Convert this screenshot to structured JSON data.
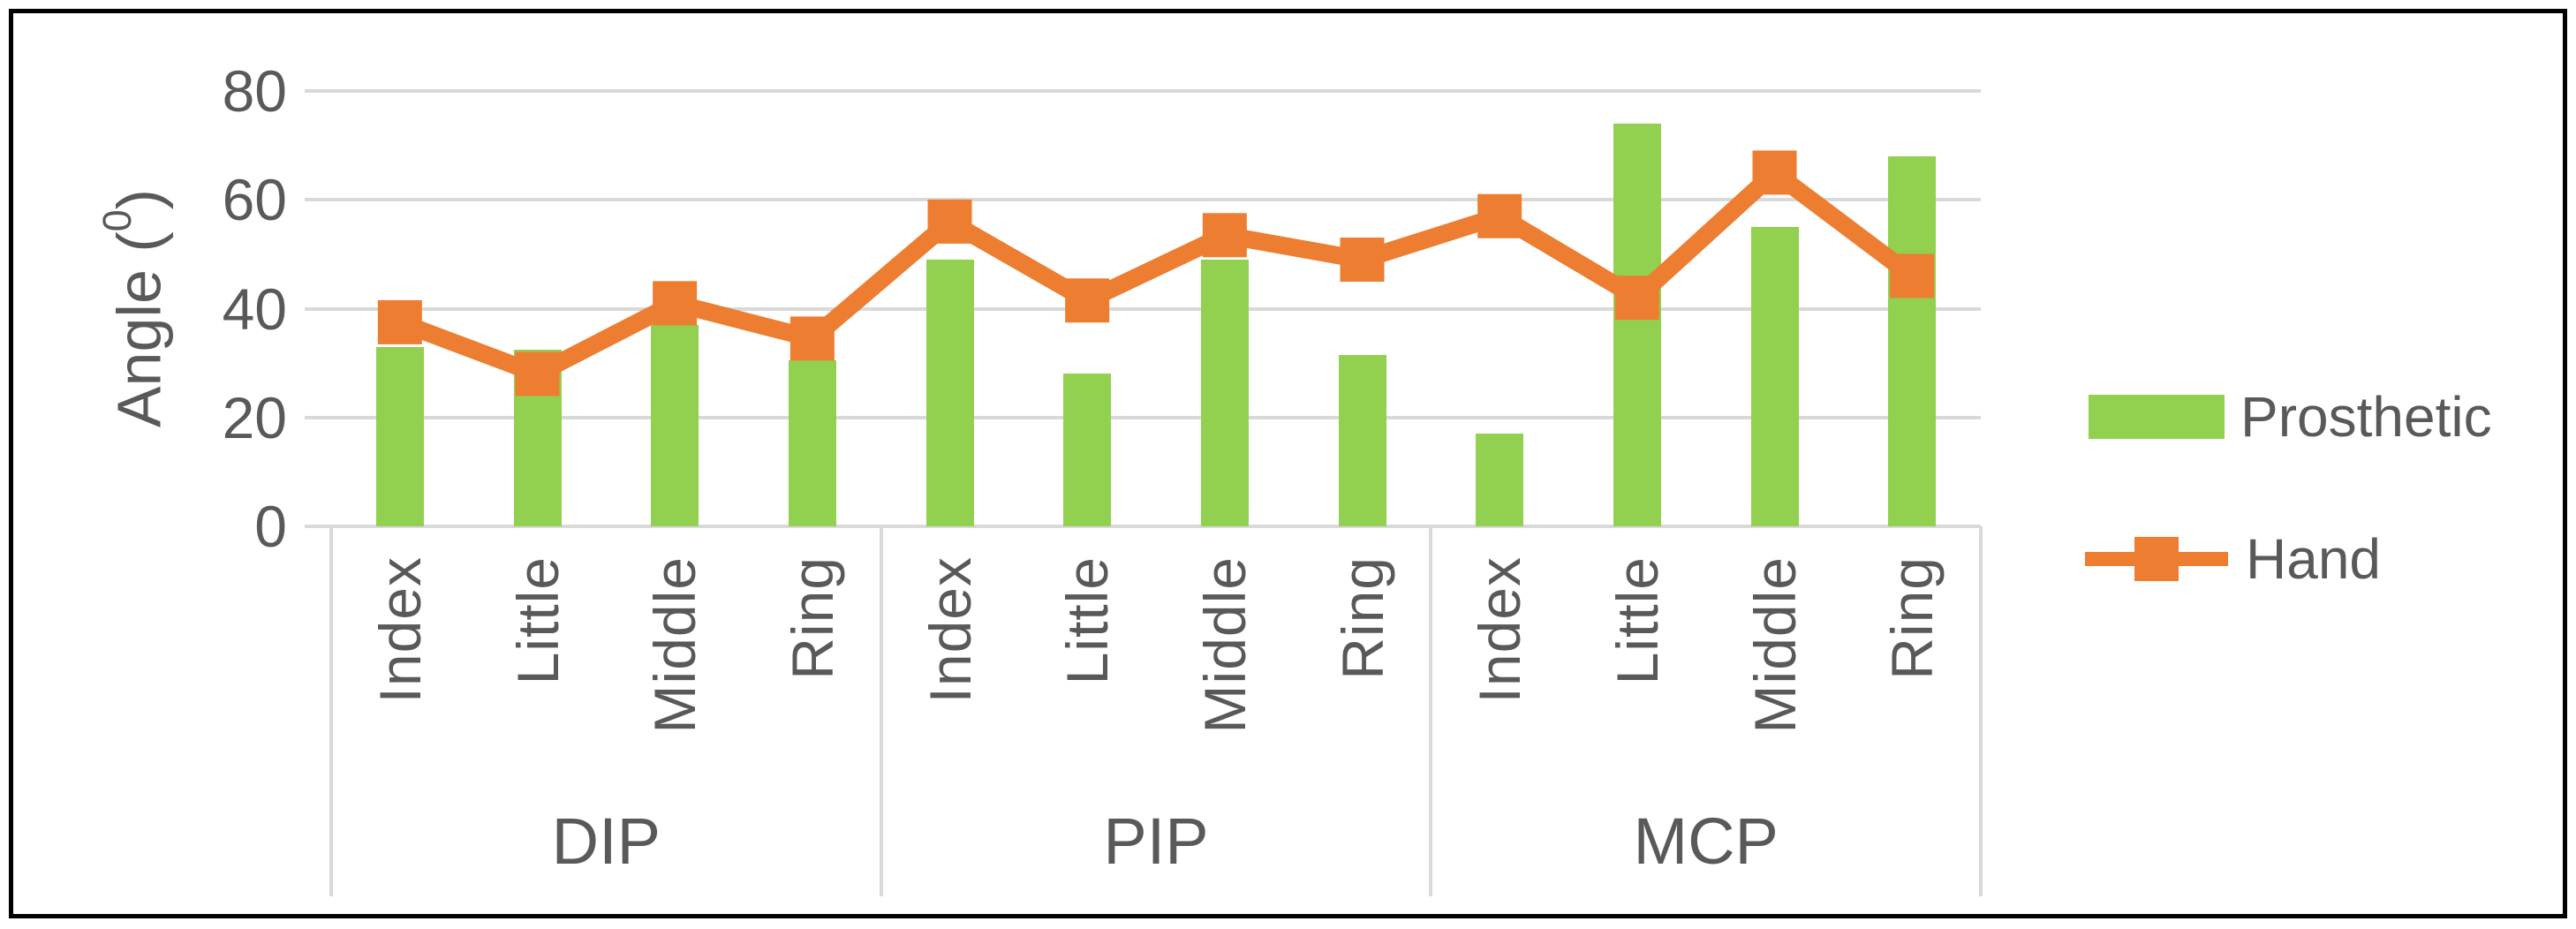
{
  "chart_data": {
    "type": "combo-bar-line",
    "title": "",
    "ylabel_prefix": "Angle (",
    "ylabel_sup": "0",
    "ylabel_suffix": ")",
    "ylim": [
      0,
      80
    ],
    "y_ticks": [
      0,
      20,
      40,
      60,
      80
    ],
    "gridlines": true,
    "legend_position": "right",
    "groups": [
      {
        "label": "DIP"
      },
      {
        "label": "PIP"
      },
      {
        "label": "MCP"
      }
    ],
    "categories": [
      "Index",
      "Little",
      "Middle",
      "Ring",
      "Index",
      "Little",
      "Middle",
      "Ring",
      "Index",
      "Little",
      "Middle",
      "Ring"
    ],
    "series": [
      {
        "name": "Prosthetic",
        "type": "bar",
        "color": "#92D050",
        "values": [
          33,
          32.5,
          37,
          30.5,
          49,
          28,
          49,
          31.5,
          17,
          74,
          55,
          68
        ]
      },
      {
        "name": "Hand",
        "type": "line",
        "marker": "square",
        "color": "#ED7D31",
        "values": [
          37.5,
          28,
          41,
          34.5,
          56,
          41.5,
          53.5,
          49,
          57,
          42,
          65,
          46
        ]
      }
    ]
  },
  "colors": {
    "grid": "#D9D9D9",
    "text": "#595959",
    "frame": "#000000",
    "background": "#FFFFFF"
  }
}
